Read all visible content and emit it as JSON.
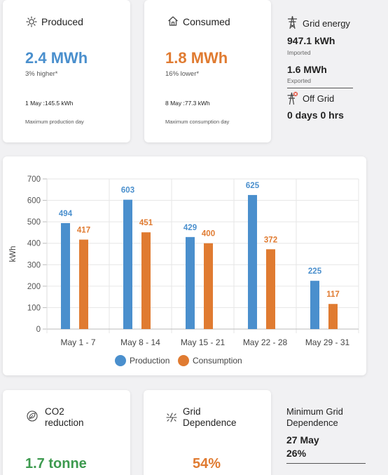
{
  "produced": {
    "title": "Produced",
    "value": "2.4 MWh",
    "change": "3% higher*",
    "max_day": "1 May :145.5 kWh",
    "max_label": "Maximum production day"
  },
  "consumed": {
    "title": "Consumed",
    "value": "1.8 MWh",
    "change": "16% lower*",
    "max_day": "8 May :77.3 kWh",
    "max_label": "Maximum consumption day"
  },
  "grid_energy": {
    "title": "Grid energy",
    "imported_value": "947.1 kWh",
    "imported_label": "Imported",
    "exported_value": "1.6 MWh",
    "exported_label": "Exported",
    "off_grid_title": "Off Grid",
    "off_grid_value": "0 days 0 hrs"
  },
  "chart_data": {
    "type": "bar",
    "categories": [
      "May 1 - 7",
      "May 8 - 14",
      "May 15 - 21",
      "May 22 - 28",
      "May 29 - 31"
    ],
    "series": [
      {
        "name": "Production",
        "values": [
          494,
          603,
          429,
          625,
          225
        ],
        "color": "#4a8fcd"
      },
      {
        "name": "Consumption",
        "values": [
          417,
          451,
          400,
          372,
          117
        ],
        "color": "#e07b31"
      }
    ],
    "ylabel": "kWh",
    "ylim": [
      0,
      700
    ],
    "yticks": [
      "0",
      "100",
      "200",
      "300",
      "400",
      "500",
      "600",
      "700"
    ],
    "grid": true,
    "legend_position": "bottom"
  },
  "co2": {
    "title_line1": "CO2",
    "title_line2": "reduction",
    "value": "1.7 tonne"
  },
  "grid_dependence": {
    "title_line1": "Grid",
    "title_line2": "Dependence",
    "value": "54%"
  },
  "min_grid": {
    "title_line1": "Minimum Grid",
    "title_line2": "Dependence",
    "date": "27 May",
    "value": "26%"
  }
}
